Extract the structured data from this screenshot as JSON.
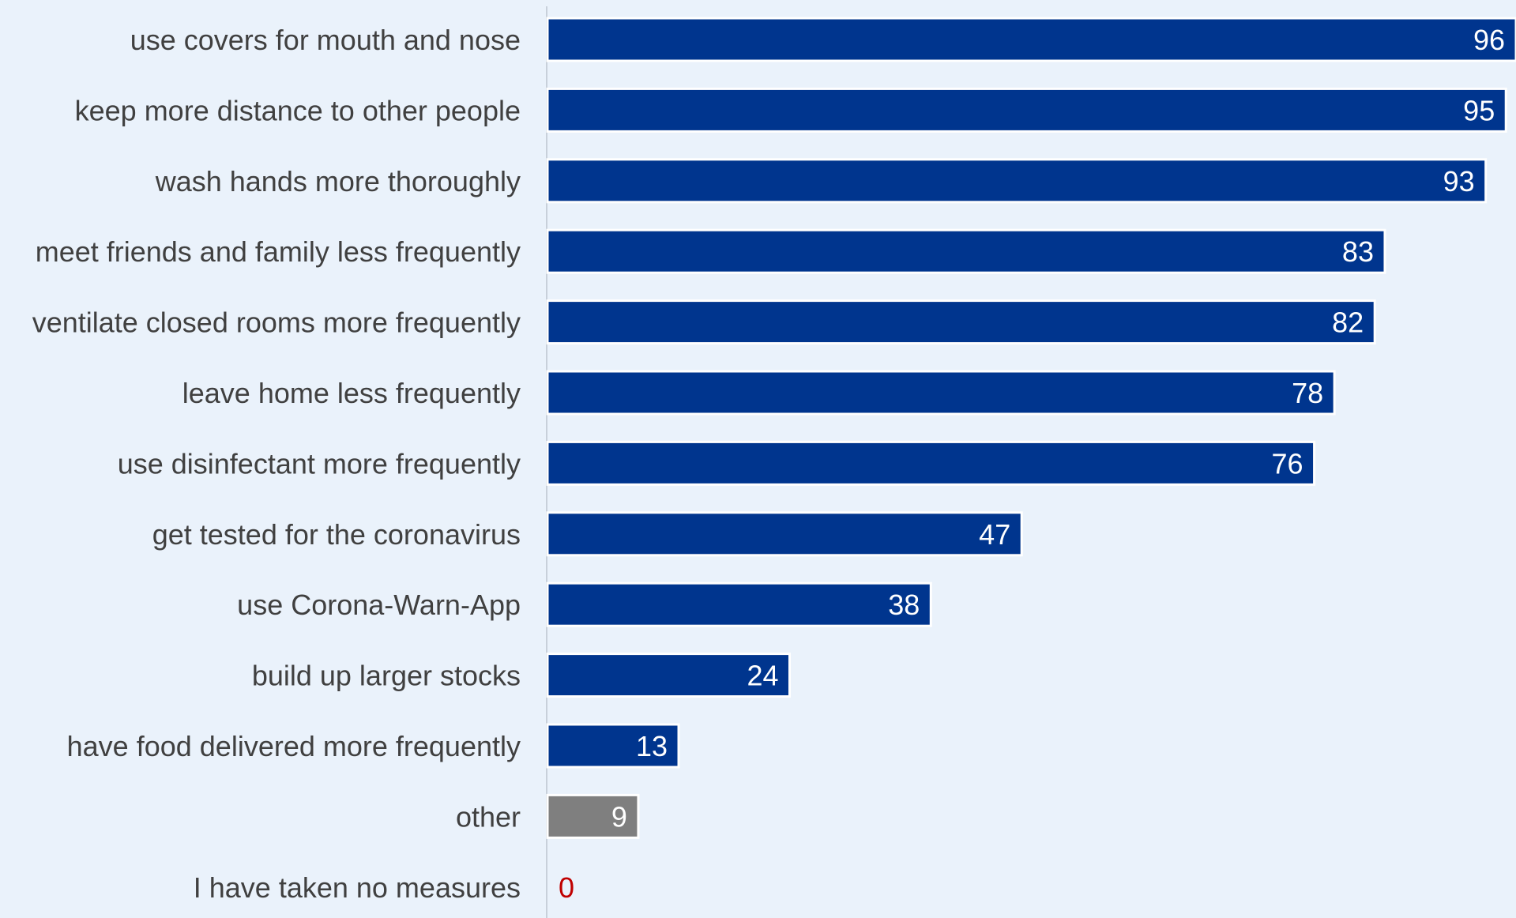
{
  "chart_data": {
    "type": "bar",
    "orientation": "horizontal",
    "categories": [
      "use covers for mouth and nose",
      "keep more distance to other people",
      "wash hands more thoroughly",
      "meet friends and family less frequently",
      "ventilate closed rooms more frequently",
      "leave home less frequently",
      "use disinfectant more frequently",
      "get tested for the coronavirus",
      "use Corona-Warn-App",
      "build up larger stocks",
      "have food delivered more frequently",
      "other",
      "I have taken no measures"
    ],
    "values": [
      96,
      95,
      93,
      83,
      82,
      78,
      76,
      47,
      38,
      24,
      13,
      9,
      0
    ],
    "bar_colors": [
      "#00358e",
      "#00358e",
      "#00358e",
      "#00358e",
      "#00358e",
      "#00358e",
      "#00358e",
      "#00358e",
      "#00358e",
      "#00358e",
      "#00358e",
      "#7f7f7f",
      "#00358e"
    ],
    "zero_label_color": "#c00000",
    "xlim": [
      0,
      96
    ],
    "grid": false,
    "title": "",
    "xlabel": "",
    "ylabel": ""
  }
}
